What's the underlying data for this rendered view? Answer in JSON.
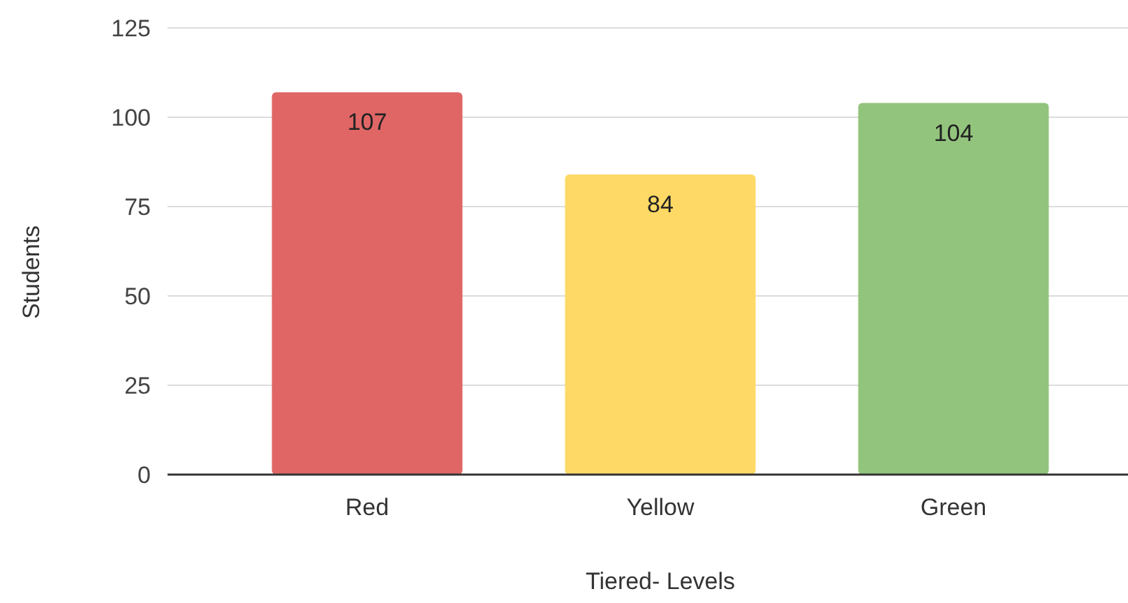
{
  "chart_data": {
    "type": "bar",
    "xlabel": "Tiered- Levels",
    "ylabel": "Students",
    "categories": [
      "Red",
      "Yellow",
      "Green"
    ],
    "values": [
      107,
      84,
      104
    ],
    "colors": [
      "#e06666",
      "#ffd966",
      "#93c47d"
    ],
    "ylim": [
      0,
      125
    ],
    "yticks": [
      0,
      25,
      50,
      75,
      100,
      125
    ],
    "grid": "y",
    "data_labels": true
  }
}
